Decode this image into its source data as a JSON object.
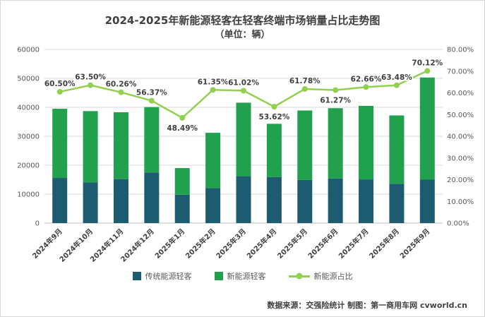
{
  "title": "2024-2025年新能源轻客在轻客终端市场销量占比走势图",
  "subtitle": "（单位：辆）",
  "source_note": "数据来源：交强险统计 制图：第一商用车网 cvworld.cn",
  "colors": {
    "traditional_bar": "#1d5b70",
    "new_energy_bar": "#21a14e",
    "share_line": "#92d050",
    "grid": "#d9d9d9",
    "axis": "#bfbfbf",
    "text": "#404040"
  },
  "legend": {
    "traditional": "传统能源轻客",
    "new_energy": "新能源轻客",
    "share": "新能源占比"
  },
  "chart_data": {
    "type": "bar",
    "subtype": "stacked-bar-with-line",
    "categories": [
      "2024年9月",
      "2024年10月",
      "2024年11月",
      "2024年12月",
      "2025年1月",
      "2025年2月",
      "2025年3月",
      "2025年4月",
      "2025年5月",
      "2025年6月",
      "2025年7月",
      "2025年8月",
      "2025年9月"
    ],
    "series": [
      {
        "name": "传统能源轻客",
        "type": "bar",
        "stack": true,
        "axis": "left",
        "values": [
          15600,
          14100,
          15200,
          17500,
          9800,
          12100,
          16200,
          15900,
          14900,
          15400,
          15100,
          13600,
          15000
        ]
      },
      {
        "name": "新能源轻客",
        "type": "bar",
        "stack": true,
        "axis": "left",
        "values": [
          23900,
          24600,
          23100,
          22600,
          9200,
          19100,
          25400,
          18400,
          24000,
          24300,
          25400,
          23600,
          35300
        ]
      },
      {
        "name": "新能源占比",
        "type": "line",
        "axis": "right",
        "values": [
          60.5,
          63.5,
          60.26,
          56.37,
          48.49,
          61.35,
          61.02,
          53.62,
          61.78,
          61.27,
          62.66,
          63.48,
          70.12
        ]
      }
    ],
    "left_axis": {
      "min": 0,
      "max": 60000,
      "step": 10000
    },
    "right_axis": {
      "min": 0,
      "max": 80,
      "step": 10,
      "format": "percent-2dp"
    },
    "grid": "horizontal",
    "legend_position": "bottom",
    "title": "2024-2025年新能源轻客在轻客终端市场销量占比走势图",
    "ylabel_left": "辆",
    "ylabel_right": "%"
  }
}
